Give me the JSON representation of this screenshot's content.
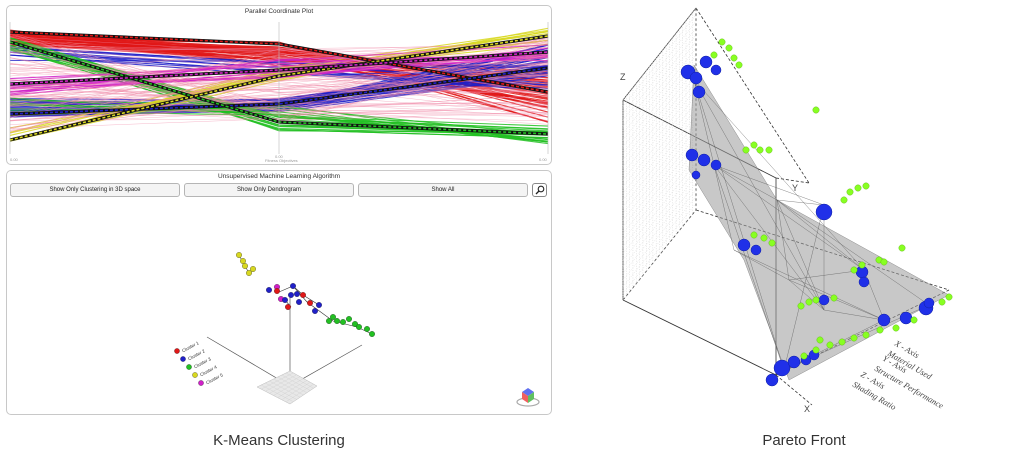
{
  "left": {
    "pcp_title": "Parallel Coordinate Plot",
    "pcp_axis_left": "0.00",
    "pcp_axis_mid": "0.00",
    "pcp_axis_mid_label": "Fitness Objectives",
    "pcp_axis_right": "0.00",
    "ml_title": "Unsupervised Machine Learning Algorithm",
    "buttons": [
      "Show Only Clustering in 3D space",
      "Show Only Dendrogram",
      "Show All"
    ],
    "legend": [
      "Cluster 1",
      "Cluster 2",
      "Cluster 3",
      "Cluster 4",
      "Cluster 5"
    ],
    "caption": "K-Means Clustering"
  },
  "right": {
    "axis_z": "Z",
    "axis_y": "Y",
    "axis_x": "X",
    "legend_x": [
      "X - Axis",
      "Material Used"
    ],
    "legend_y": [
      "Y - Axis",
      "Structure Performance"
    ],
    "legend_z": [
      "Z - Axis",
      "Shading Ratio"
    ],
    "caption": "Pareto Front"
  },
  "colors": {
    "cluster": [
      "#e01818",
      "#2020c8",
      "#22c022",
      "#d8d820",
      "#d020c8"
    ],
    "blue_point": "#2030e8",
    "green_point": "#88ff22"
  }
}
